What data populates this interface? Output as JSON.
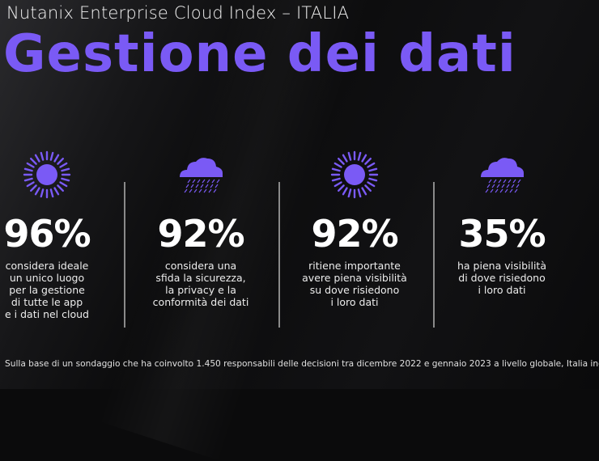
{
  "header": {
    "subtitle": "Nutanix Enterprise Cloud Index – ITALIA",
    "title": "Gestione dei dati"
  },
  "accent_color": "#7a5af5",
  "stats": [
    {
      "icon": "sun-icon",
      "value": "96%",
      "lines": [
        "considera ideale",
        "un unico luogo",
        "per la gestione",
        "di tutte le app",
        "e i dati nel cloud"
      ]
    },
    {
      "icon": "rain-cloud-icon",
      "value": "92%",
      "lines": [
        "considera una",
        "sfida la sicurezza,",
        "la privacy e la",
        "conformità dei dati"
      ]
    },
    {
      "icon": "sun-icon",
      "value": "92%",
      "lines": [
        "ritiene importante",
        "avere piena visibilità",
        "su dove risiedono",
        "i loro dati"
      ]
    },
    {
      "icon": "rain-cloud-icon",
      "value": "35%",
      "lines": [
        "ha piena visibilità",
        "di dove risiedono",
        "i loro dati"
      ]
    }
  ],
  "footnote": "Sulla base di un sondaggio che ha coinvolto 1.450 responsabili delle decisioni tra dicembre 2022 e gennaio 2023 a livello globale, Italia inclusa."
}
